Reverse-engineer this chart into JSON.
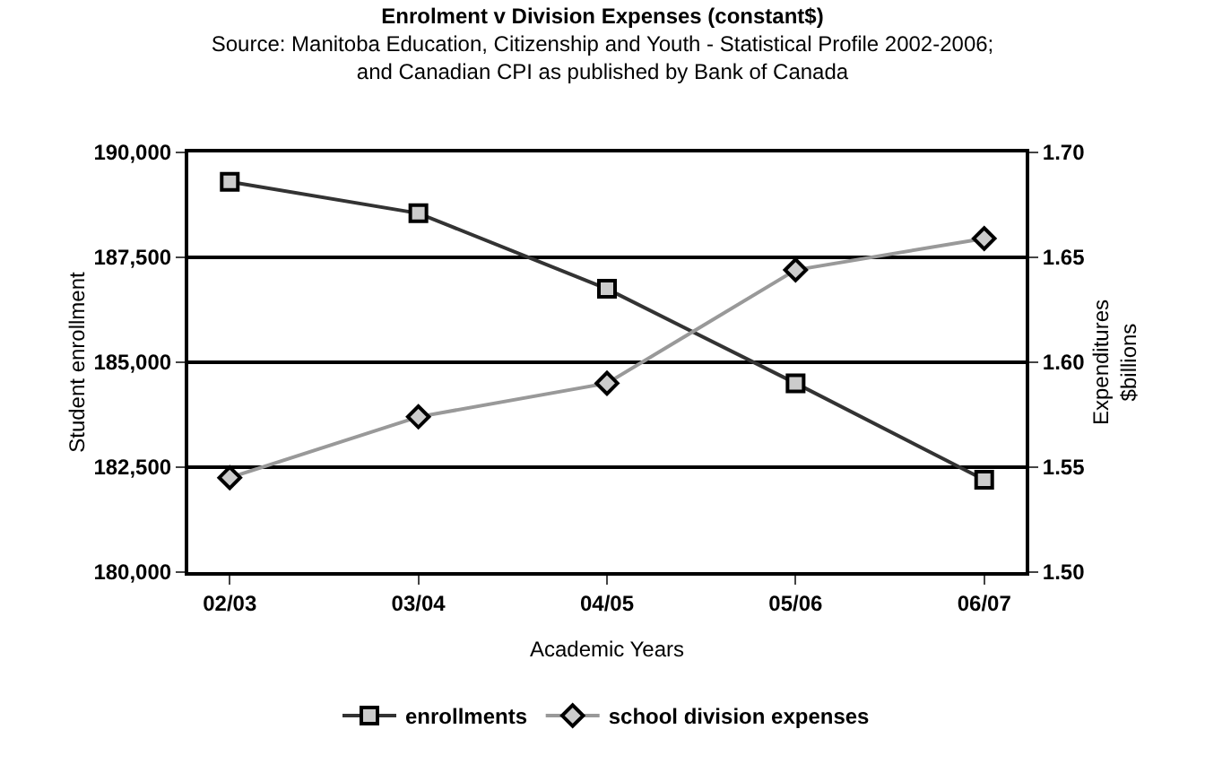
{
  "chart_data": {
    "type": "line",
    "title": "Enrolment v Division Expenses (constant$)",
    "subtitle": "Source: Manitoba Education, Citizenship and Youth - Statistical Profile 2002-2006;\nand Canadian CPI as published by Bank of Canada",
    "categories": [
      "02/03",
      "03/04",
      "04/05",
      "05/06",
      "06/07"
    ],
    "xlabel": "Academic Years",
    "ylabel": "Student enrollment",
    "y2label": "Expenditures\n$billions",
    "series": [
      {
        "name": "enrollments",
        "color": "#333333",
        "marker": "square",
        "values": [
          189300,
          188550,
          186750,
          184500,
          182200
        ]
      },
      {
        "name": "school division expenses",
        "color": "#999999",
        "marker": "diamond",
        "axis": "y2",
        "values": [
          1.545,
          1.574,
          1.59,
          1.644,
          1.659
        ]
      }
    ],
    "ylim": [
      180000,
      190000
    ],
    "yticks": [
      {
        "value": 180000,
        "label": "180,000"
      },
      {
        "value": 182500,
        "label": "182,500"
      },
      {
        "value": 185000,
        "label": "185,000"
      },
      {
        "value": 187500,
        "label": "187,500"
      },
      {
        "value": 190000,
        "label": "190,000"
      }
    ],
    "y2lim": [
      1.5,
      1.7
    ],
    "y2ticks": [
      {
        "value": 1.5,
        "label": "1.50"
      },
      {
        "value": 1.55,
        "label": "1.55"
      },
      {
        "value": 1.6,
        "label": "1.60"
      },
      {
        "value": 1.65,
        "label": "1.65"
      },
      {
        "value": 1.7,
        "label": "1.70"
      }
    ],
    "grid": "y",
    "legend": "bottom"
  }
}
